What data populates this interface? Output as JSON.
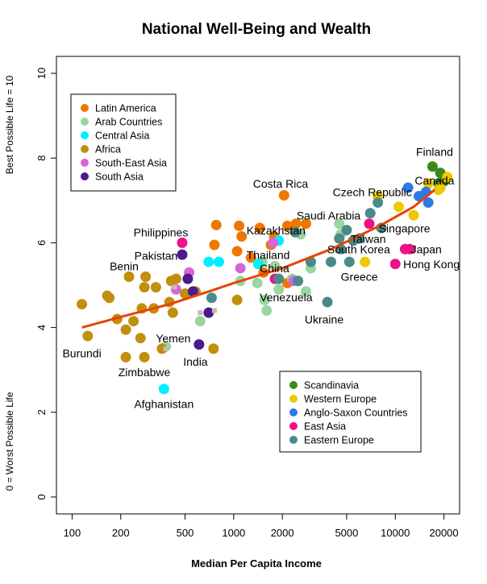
{
  "chart_data": {
    "type": "scatter",
    "title": "National Well-Being and Wealth",
    "xlabel": "Median Per Capita Income",
    "ylabel_top": "Best Possible Life = 10",
    "ylabel_bottom": "0 = Worst Possible Life",
    "x_scale": "log",
    "xlim": [
      80,
      25000
    ],
    "ylim": [
      -0.4,
      10.4
    ],
    "x_ticks": [
      100,
      200,
      500,
      1000,
      2000,
      5000,
      10000,
      20000
    ],
    "x_tick_labels": [
      "100",
      "200",
      "500",
      "1000",
      "2000",
      "5000",
      "10000",
      "20000"
    ],
    "y_ticks": [
      0,
      2,
      4,
      6,
      8,
      10
    ],
    "y_tick_labels": [
      "0",
      "2",
      "4",
      "6",
      "8",
      "10"
    ],
    "grid": false,
    "region_colors": {
      "Latin America": "#ee7700",
      "Arab Countries": "#99d6a0",
      "Central Asia": "#00f0ff",
      "Africa": "#c28e0e",
      "South-East Asia": "#d666d6",
      "South Asia": "#4b1a8c",
      "Scandinavia": "#3a8a1a",
      "Western Europe": "#f0c800",
      "Anglo-Saxon Countries": "#2e7ae6",
      "East Asia": "#ee1188",
      "Eastern Europe": "#4a8a8a",
      "Other": "#c8b8b8"
    },
    "legends": [
      {
        "position": "top-left",
        "entries": [
          "Latin America",
          "Arab Countries",
          "Central Asia",
          "Africa",
          "South-East Asia",
          "South Asia"
        ]
      },
      {
        "position": "bottom-right",
        "entries": [
          "Scandinavia",
          "Western Europe",
          "Anglo-Saxon Countries",
          "East Asia",
          "Eastern Europe"
        ]
      }
    ],
    "trend_line": {
      "color": "#e84400",
      "points": [
        [
          115,
          4.0
        ],
        [
          200,
          4.25
        ],
        [
          400,
          4.55
        ],
        [
          700,
          4.85
        ],
        [
          1000,
          5.05
        ],
        [
          2000,
          5.4
        ],
        [
          4000,
          5.85
        ],
        [
          8000,
          6.4
        ],
        [
          13000,
          6.85
        ],
        [
          17500,
          7.25
        ]
      ]
    },
    "points": [
      {
        "x": 1080,
        "y": 6.4,
        "region": "Latin America"
      },
      {
        "x": 1120,
        "y": 6.15,
        "region": "Latin America"
      },
      {
        "x": 780,
        "y": 6.42,
        "region": "Latin America"
      },
      {
        "x": 760,
        "y": 5.95,
        "region": "Latin America"
      },
      {
        "x": 1280,
        "y": 5.65,
        "region": "Latin America"
      },
      {
        "x": 1450,
        "y": 6.35,
        "region": "Latin America"
      },
      {
        "x": 1700,
        "y": 5.95,
        "region": "Latin America"
      },
      {
        "x": 1780,
        "y": 6.15,
        "region": "Latin America"
      },
      {
        "x": 2050,
        "y": 7.12,
        "region": "Latin America"
      },
      {
        "x": 2150,
        "y": 6.4,
        "region": "Latin America"
      },
      {
        "x": 2430,
        "y": 6.45,
        "region": "Latin America"
      },
      {
        "x": 2800,
        "y": 6.45,
        "region": "Latin America"
      },
      {
        "x": 1530,
        "y": 5.3,
        "region": "Latin America"
      },
      {
        "x": 2150,
        "y": 5.05,
        "region": "Latin America"
      },
      {
        "x": 1050,
        "y": 5.8,
        "region": "Latin America"
      },
      {
        "x": 1100,
        "y": 5.1,
        "region": "Arab Countries"
      },
      {
        "x": 1400,
        "y": 5.05,
        "region": "Arab Countries"
      },
      {
        "x": 1600,
        "y": 4.4,
        "region": "Arab Countries"
      },
      {
        "x": 1550,
        "y": 4.65,
        "region": "Arab Countries"
      },
      {
        "x": 1900,
        "y": 4.9,
        "region": "Arab Countries"
      },
      {
        "x": 2300,
        "y": 5.15,
        "region": "Arab Countries"
      },
      {
        "x": 2500,
        "y": 5.1,
        "region": "Arab Countries"
      },
      {
        "x": 2800,
        "y": 4.85,
        "region": "Arab Countries"
      },
      {
        "x": 4500,
        "y": 6.45,
        "region": "Arab Countries"
      },
      {
        "x": 4600,
        "y": 6.2,
        "region": "Arab Countries"
      },
      {
        "x": 620,
        "y": 4.15,
        "region": "Arab Countries"
      },
      {
        "x": 380,
        "y": 3.55,
        "region": "Arab Countries"
      },
      {
        "x": 3000,
        "y": 5.4,
        "region": "Arab Countries"
      },
      {
        "x": 1800,
        "y": 5.45,
        "region": "Arab Countries"
      },
      {
        "x": 2600,
        "y": 6.2,
        "region": "Arab Countries"
      },
      {
        "x": 1500,
        "y": 5.55,
        "region": "Arab Countries"
      },
      {
        "x": 370,
        "y": 2.55,
        "region": "Central Asia"
      },
      {
        "x": 700,
        "y": 5.55,
        "region": "Central Asia"
      },
      {
        "x": 810,
        "y": 5.55,
        "region": "Central Asia"
      },
      {
        "x": 1420,
        "y": 5.5,
        "region": "Central Asia"
      },
      {
        "x": 1900,
        "y": 6.05,
        "region": "Central Asia"
      },
      {
        "x": 115,
        "y": 4.55,
        "region": "Africa"
      },
      {
        "x": 125,
        "y": 3.8,
        "region": "Africa"
      },
      {
        "x": 165,
        "y": 4.75,
        "region": "Africa"
      },
      {
        "x": 190,
        "y": 4.2,
        "region": "Africa"
      },
      {
        "x": 215,
        "y": 3.95,
        "region": "Africa"
      },
      {
        "x": 215,
        "y": 3.3,
        "region": "Africa"
      },
      {
        "x": 225,
        "y": 5.2,
        "region": "Africa"
      },
      {
        "x": 240,
        "y": 4.15,
        "region": "Africa"
      },
      {
        "x": 265,
        "y": 3.75,
        "region": "Africa"
      },
      {
        "x": 270,
        "y": 4.45,
        "region": "Africa"
      },
      {
        "x": 280,
        "y": 4.95,
        "region": "Africa"
      },
      {
        "x": 285,
        "y": 5.2,
        "region": "Africa"
      },
      {
        "x": 280,
        "y": 3.3,
        "region": "Africa"
      },
      {
        "x": 320,
        "y": 4.45,
        "region": "Africa"
      },
      {
        "x": 360,
        "y": 3.5,
        "region": "Africa"
      },
      {
        "x": 400,
        "y": 4.6,
        "region": "Africa"
      },
      {
        "x": 410,
        "y": 5.1,
        "region": "Africa"
      },
      {
        "x": 420,
        "y": 4.35,
        "region": "Africa"
      },
      {
        "x": 440,
        "y": 5.15,
        "region": "Africa"
      },
      {
        "x": 500,
        "y": 4.8,
        "region": "Africa"
      },
      {
        "x": 750,
        "y": 3.5,
        "region": "Africa"
      },
      {
        "x": 580,
        "y": 4.85,
        "region": "Africa"
      },
      {
        "x": 1050,
        "y": 4.65,
        "region": "Africa"
      },
      {
        "x": 330,
        "y": 4.95,
        "region": "Africa"
      },
      {
        "x": 170,
        "y": 4.7,
        "region": "Africa"
      },
      {
        "x": 440,
        "y": 4.9,
        "region": "South-East Asia"
      },
      {
        "x": 530,
        "y": 5.3,
        "region": "South-East Asia"
      },
      {
        "x": 1100,
        "y": 5.4,
        "region": "South-East Asia"
      },
      {
        "x": 1750,
        "y": 6.0,
        "region": "South-East Asia"
      },
      {
        "x": 2350,
        "y": 5.1,
        "region": "South-East Asia"
      },
      {
        "x": 480,
        "y": 5.72,
        "region": "South Asia"
      },
      {
        "x": 520,
        "y": 5.15,
        "region": "South Asia"
      },
      {
        "x": 560,
        "y": 4.85,
        "region": "South Asia"
      },
      {
        "x": 610,
        "y": 3.6,
        "region": "South Asia"
      },
      {
        "x": 700,
        "y": 4.35,
        "region": "South Asia"
      },
      {
        "x": 17000,
        "y": 7.8,
        "region": "Scandinavia"
      },
      {
        "x": 19000,
        "y": 7.65,
        "region": "Scandinavia"
      },
      {
        "x": 18500,
        "y": 7.4,
        "region": "Scandinavia"
      },
      {
        "x": 20000,
        "y": 7.45,
        "region": "Scandinavia"
      },
      {
        "x": 7800,
        "y": 7.1,
        "region": "Western Europe"
      },
      {
        "x": 10500,
        "y": 6.85,
        "region": "Western Europe"
      },
      {
        "x": 13000,
        "y": 6.65,
        "region": "Western Europe"
      },
      {
        "x": 6500,
        "y": 5.55,
        "region": "Western Europe"
      },
      {
        "x": 16000,
        "y": 7.4,
        "region": "Western Europe"
      },
      {
        "x": 19000,
        "y": 7.3,
        "region": "Western Europe"
      },
      {
        "x": 21000,
        "y": 7.55,
        "region": "Western Europe"
      },
      {
        "x": 18500,
        "y": 7.25,
        "region": "Western Europe"
      },
      {
        "x": 12000,
        "y": 7.3,
        "region": "Anglo-Saxon Countries"
      },
      {
        "x": 14000,
        "y": 7.1,
        "region": "Anglo-Saxon Countries"
      },
      {
        "x": 15500,
        "y": 7.2,
        "region": "Anglo-Saxon Countries"
      },
      {
        "x": 16000,
        "y": 6.95,
        "region": "Anglo-Saxon Countries"
      },
      {
        "x": 480,
        "y": 6.0,
        "region": "East Asia"
      },
      {
        "x": 1800,
        "y": 5.15,
        "region": "East Asia"
      },
      {
        "x": 6900,
        "y": 6.45,
        "region": "East Asia"
      },
      {
        "x": 10000,
        "y": 5.5,
        "region": "East Asia"
      },
      {
        "x": 11500,
        "y": 5.85,
        "region": "East Asia"
      },
      {
        "x": 12300,
        "y": 5.85,
        "region": "East Asia"
      },
      {
        "x": 730,
        "y": 4.7,
        "region": "Eastern Europe"
      },
      {
        "x": 2400,
        "y": 6.25,
        "region": "Eastern Europe"
      },
      {
        "x": 3000,
        "y": 5.55,
        "region": "Eastern Europe"
      },
      {
        "x": 3800,
        "y": 4.6,
        "region": "Eastern Europe"
      },
      {
        "x": 4000,
        "y": 5.55,
        "region": "Eastern Europe"
      },
      {
        "x": 4500,
        "y": 6.1,
        "region": "Eastern Europe"
      },
      {
        "x": 5000,
        "y": 6.3,
        "region": "Eastern Europe"
      },
      {
        "x": 5200,
        "y": 5.55,
        "region": "Eastern Europe"
      },
      {
        "x": 5500,
        "y": 6.05,
        "region": "Eastern Europe"
      },
      {
        "x": 6000,
        "y": 6.1,
        "region": "Eastern Europe"
      },
      {
        "x": 7000,
        "y": 6.7,
        "region": "Eastern Europe"
      },
      {
        "x": 7800,
        "y": 6.95,
        "region": "Eastern Europe"
      },
      {
        "x": 8200,
        "y": 6.35,
        "region": "Eastern Europe"
      },
      {
        "x": 2500,
        "y": 5.1,
        "region": "Eastern Europe"
      },
      {
        "x": 1900,
        "y": 5.15,
        "region": "Eastern Europe"
      },
      {
        "x": 4600,
        "y": 5.85,
        "region": "Eastern Europe"
      },
      {
        "x": 430,
        "y": 4.95,
        "region": "Other"
      },
      {
        "x": 620,
        "y": 4.35,
        "region": "Other"
      },
      {
        "x": 760,
        "y": 4.4,
        "region": "Other"
      },
      {
        "x": 380,
        "y": 3.5,
        "region": "Other"
      }
    ],
    "annotations": [
      {
        "text": "Finland",
        "x": 17500,
        "y": 8.05,
        "anchor": "middle"
      },
      {
        "text": "Canada",
        "x": 17500,
        "y": 7.38,
        "anchor": "middle"
      },
      {
        "text": "Czech Republic",
        "x": 4100,
        "y": 7.1,
        "anchor": "start"
      },
      {
        "text": "Costa Rica",
        "x": 1950,
        "y": 7.3,
        "anchor": "middle"
      },
      {
        "text": "Saudi Arabia",
        "x": 2450,
        "y": 6.55,
        "anchor": "start"
      },
      {
        "text": "Kazakhstan",
        "x": 1200,
        "y": 6.2,
        "anchor": "start"
      },
      {
        "text": "Philippines",
        "x": 240,
        "y": 6.15,
        "anchor": "start"
      },
      {
        "text": "Taiwan",
        "x": 5300,
        "y": 6.0,
        "anchor": "start"
      },
      {
        "text": "Singapore",
        "x": 7900,
        "y": 6.25,
        "anchor": "start"
      },
      {
        "text": "South Korea",
        "x": 3800,
        "y": 5.75,
        "anchor": "start"
      },
      {
        "text": "Japan",
        "x": 12500,
        "y": 5.75,
        "anchor": "start"
      },
      {
        "text": "Pakistan",
        "x": 450,
        "y": 5.6,
        "anchor": "end"
      },
      {
        "text": "Thailand",
        "x": 1200,
        "y": 5.62,
        "anchor": "start"
      },
      {
        "text": "Hong Kong",
        "x": 11200,
        "y": 5.4,
        "anchor": "start"
      },
      {
        "text": "Benin",
        "x": 210,
        "y": 5.35,
        "anchor": "middle"
      },
      {
        "text": "China",
        "x": 1450,
        "y": 5.3,
        "anchor": "start"
      },
      {
        "text": "Greece",
        "x": 4600,
        "y": 5.1,
        "anchor": "start"
      },
      {
        "text": "Venezuela",
        "x": 1450,
        "y": 4.62,
        "anchor": "start"
      },
      {
        "text": "Ukraine",
        "x": 2750,
        "y": 4.1,
        "anchor": "start"
      },
      {
        "text": "Yemen",
        "x": 330,
        "y": 3.65,
        "anchor": "start"
      },
      {
        "text": "Burundi",
        "x": 115,
        "y": 3.3,
        "anchor": "middle"
      },
      {
        "text": "India",
        "x": 580,
        "y": 3.1,
        "anchor": "middle"
      },
      {
        "text": "Zimbabwe",
        "x": 280,
        "y": 2.85,
        "anchor": "middle"
      },
      {
        "text": "Afghanistan",
        "x": 370,
        "y": 2.1,
        "anchor": "middle"
      }
    ]
  }
}
